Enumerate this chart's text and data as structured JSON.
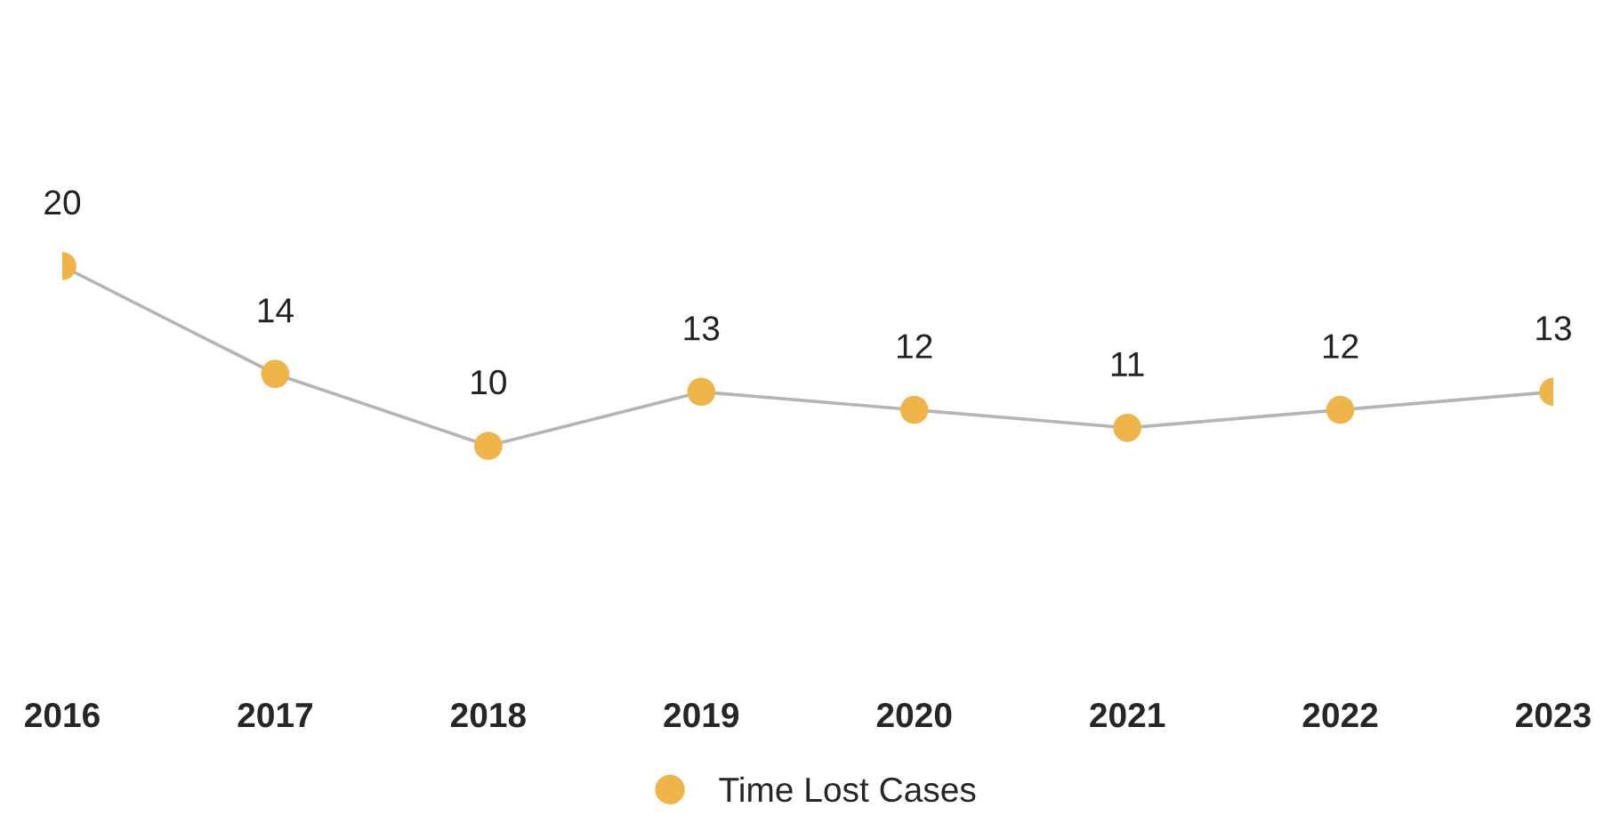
{
  "chart_data": {
    "type": "line",
    "categories": [
      "2016",
      "2017",
      "2018",
      "2019",
      "2020",
      "2021",
      "2022",
      "2023"
    ],
    "series": [
      {
        "name": "Time Lost Cases",
        "color": "#f0b54a",
        "values": [
          20,
          14,
          10,
          13,
          12,
          11,
          12,
          13
        ]
      }
    ],
    "data_labels": true,
    "marker": "circle",
    "legend": "bottom",
    "grid": false
  }
}
